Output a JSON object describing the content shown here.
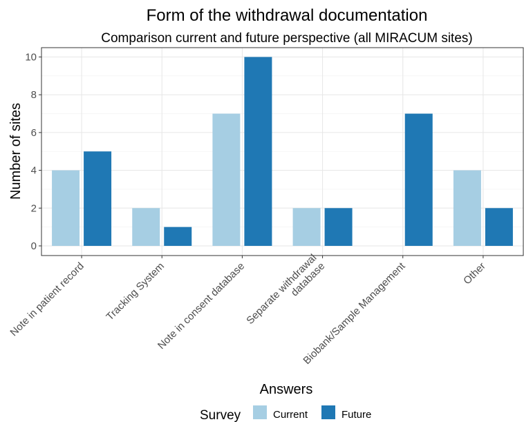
{
  "chart_data": {
    "type": "bar",
    "title": "Form of the withdrawal documentation",
    "subtitle": "Comparison current and future perspective (all MIRACUM sites)",
    "xlabel": "Answers",
    "ylabel": "Number of sites",
    "ylim": [
      0,
      10.5
    ],
    "yticks": [
      0,
      2,
      4,
      6,
      8,
      10
    ],
    "grid": true,
    "categories": [
      [
        "Note in patient record"
      ],
      [
        "Tracking System"
      ],
      [
        "Note in consent database"
      ],
      [
        "Separate withdrawal",
        "database"
      ],
      [
        "Biobank/Sample Management"
      ],
      [
        "Other"
      ]
    ],
    "series": [
      {
        "name": "Current",
        "color": "#a6cee3",
        "values": [
          4,
          2,
          7,
          2,
          0,
          4
        ]
      },
      {
        "name": "Future",
        "color": "#1f78b4",
        "values": [
          5,
          1,
          10,
          2,
          7,
          2
        ]
      }
    ],
    "legend": {
      "title": "Survey",
      "position": "bottom"
    }
  }
}
